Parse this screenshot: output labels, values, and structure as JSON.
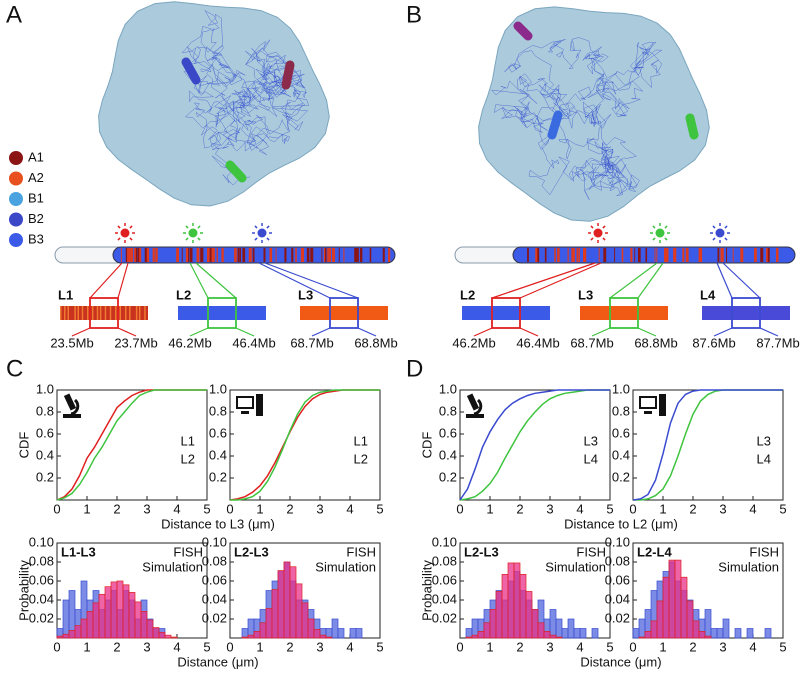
{
  "panel_labels": [
    "A",
    "B",
    "C",
    "D"
  ],
  "compartments": [
    {
      "label": "A1",
      "color": "#8b1414"
    },
    {
      "label": "A2",
      "color": "#e8501e"
    },
    {
      "label": "B1",
      "color": "#4aa3e0"
    },
    {
      "label": "B2",
      "color": "#3a48c8"
    },
    {
      "label": "B3",
      "color": "#3c5ae8"
    }
  ],
  "structures": [
    {
      "loci": [
        {
          "label": "L1",
          "color": "#e02020",
          "fill": "#c8321e",
          "start": "23.5Mb",
          "end": "23.7Mb"
        },
        {
          "label": "L2",
          "color": "#3ec43e",
          "fill": "#3c5ae8",
          "start": "46.2Mb",
          "end": "46.4Mb"
        },
        {
          "label": "L3",
          "color": "#3a4bd0",
          "fill": "#f05a14",
          "start": "68.7Mb",
          "end": "68.8Mb"
        }
      ]
    },
    {
      "loci": [
        {
          "label": "L2",
          "color": "#e02020",
          "fill": "#3c5ae8",
          "start": "46.2Mb",
          "end": "46.4Mb"
        },
        {
          "label": "L3",
          "color": "#3ec43e",
          "fill": "#f05a14",
          "start": "68.7Mb",
          "end": "68.8Mb"
        },
        {
          "label": "L4",
          "color": "#3a4bd0",
          "fill": "#4a4ad8",
          "start": "87.6Mb",
          "end": "87.7Mb"
        }
      ]
    }
  ],
  "chart_data": [
    {
      "type": "line",
      "icon": "microscope",
      "y_label": "CDF",
      "x_label": "Distance to L3 (μm)",
      "x": [
        0,
        0.25,
        0.5,
        0.75,
        1,
        1.25,
        1.5,
        1.75,
        2,
        2.25,
        2.5,
        2.75,
        3,
        3.25,
        3.5,
        3.75,
        4,
        4.25,
        4.5,
        4.75,
        5
      ],
      "xlim": [
        0,
        5
      ],
      "xticks": [
        0,
        1,
        2,
        3,
        4,
        5
      ],
      "ylim": [
        0,
        1
      ],
      "yticks": [
        0.2,
        0.4,
        0.6,
        0.8,
        {
          "value": 1,
          "label": "1.0"
        }
      ],
      "series": [
        {
          "name": "L1",
          "color": "#e02020",
          "values": [
            0,
            0.03,
            0.1,
            0.22,
            0.38,
            0.48,
            0.6,
            0.72,
            0.84,
            0.9,
            0.95,
            0.98,
            1,
            1,
            1,
            1,
            1,
            1,
            1,
            1,
            1
          ]
        },
        {
          "name": "L2",
          "color": "#3ec43e",
          "values": [
            0,
            0.02,
            0.06,
            0.14,
            0.25,
            0.38,
            0.48,
            0.6,
            0.72,
            0.8,
            0.88,
            0.95,
            0.98,
            1,
            1,
            1,
            1,
            1,
            1,
            1,
            1
          ]
        }
      ]
    },
    {
      "type": "line",
      "icon": "computer",
      "x": [
        0,
        0.25,
        0.5,
        0.75,
        1,
        1.25,
        1.5,
        1.75,
        2,
        2.25,
        2.5,
        2.75,
        3,
        3.25,
        3.5,
        3.75,
        4,
        4.25,
        4.5,
        4.75,
        5
      ],
      "xlim": [
        0,
        5
      ],
      "xticks": [
        0,
        1,
        2,
        3,
        4,
        5
      ],
      "ylim": [
        0,
        1
      ],
      "yticks": [
        0.2,
        0.4,
        0.6,
        0.8,
        {
          "value": 1,
          "label": "1.0"
        }
      ],
      "series": [
        {
          "name": "L1",
          "color": "#e02020",
          "values": [
            0,
            0.01,
            0.03,
            0.07,
            0.13,
            0.22,
            0.34,
            0.48,
            0.62,
            0.75,
            0.85,
            0.92,
            0.96,
            0.98,
            0.99,
            1,
            1,
            1,
            1,
            1,
            1
          ]
        },
        {
          "name": "L2",
          "color": "#3ec43e",
          "values": [
            0,
            0,
            0.01,
            0.03,
            0.08,
            0.17,
            0.3,
            0.46,
            0.63,
            0.78,
            0.89,
            0.95,
            0.98,
            0.99,
            1,
            1,
            1,
            1,
            1,
            1,
            1
          ]
        }
      ]
    },
    {
      "type": "line",
      "icon": "microscope",
      "y_label": "CDF",
      "x_label": "Distance to L2 (μm)",
      "x": [
        0,
        0.25,
        0.5,
        0.75,
        1,
        1.25,
        1.5,
        1.75,
        2,
        2.25,
        2.5,
        2.75,
        3,
        3.25,
        3.5,
        3.75,
        4,
        4.25,
        4.5,
        4.75,
        5
      ],
      "xlim": [
        0,
        5
      ],
      "xticks": [
        0,
        1,
        2,
        3,
        4,
        5
      ],
      "ylim": [
        0,
        1
      ],
      "yticks": [
        0.2,
        0.4,
        0.6,
        0.8,
        {
          "value": 1,
          "label": "1.0"
        }
      ],
      "series": [
        {
          "name": "L3",
          "color": "#3ec43e",
          "values": [
            0,
            0.01,
            0.03,
            0.08,
            0.15,
            0.25,
            0.38,
            0.5,
            0.62,
            0.72,
            0.8,
            0.87,
            0.92,
            0.95,
            0.97,
            0.98,
            0.99,
            1,
            1,
            1,
            1
          ]
        },
        {
          "name": "L4",
          "color": "#3a4bd0",
          "values": [
            0,
            0.1,
            0.28,
            0.48,
            0.62,
            0.73,
            0.82,
            0.88,
            0.92,
            0.95,
            0.97,
            0.98,
            0.99,
            1,
            1,
            1,
            1,
            1,
            1,
            1,
            1
          ]
        }
      ]
    },
    {
      "type": "line",
      "icon": "computer",
      "x": [
        0,
        0.25,
        0.5,
        0.75,
        1,
        1.25,
        1.5,
        1.75,
        2,
        2.25,
        2.5,
        2.75,
        3,
        3.25,
        3.5,
        3.75,
        4,
        4.25,
        4.5,
        4.75,
        5
      ],
      "xlim": [
        0,
        5
      ],
      "xticks": [
        0,
        1,
        2,
        3,
        4,
        5
      ],
      "ylim": [
        0,
        1
      ],
      "yticks": [
        0.2,
        0.4,
        0.6,
        0.8,
        {
          "value": 1,
          "label": "1.0"
        }
      ],
      "series": [
        {
          "name": "L3",
          "color": "#3ec43e",
          "values": [
            0,
            0,
            0.01,
            0.04,
            0.1,
            0.22,
            0.4,
            0.6,
            0.78,
            0.9,
            0.96,
            0.99,
            1,
            1,
            1,
            1,
            1,
            1,
            1,
            1,
            1
          ]
        },
        {
          "name": "L4",
          "color": "#3a4bd0",
          "values": [
            0,
            0.01,
            0.05,
            0.18,
            0.42,
            0.7,
            0.88,
            0.96,
            0.99,
            1,
            1,
            1,
            1,
            1,
            1,
            1,
            1,
            1,
            1,
            1,
            1
          ]
        }
      ]
    },
    {
      "type": "histogram",
      "title": "L1-L3",
      "y_label": "Probability",
      "x_label": "Distance (μm)",
      "bins": [
        0,
        0.2,
        0.4,
        0.6,
        0.8,
        1,
        1.2,
        1.4,
        1.6,
        1.8,
        2,
        2.2,
        2.4,
        2.6,
        2.8,
        3,
        3.2,
        3.4,
        3.6,
        3.8,
        4,
        4.2,
        4.4,
        4.6,
        4.8,
        5
      ],
      "xlim": [
        0,
        5
      ],
      "xticks": [
        0,
        1,
        2,
        3,
        4,
        5
      ],
      "ylim": [
        0,
        0.1
      ],
      "yticks": [
        0.02,
        0.04,
        0.06,
        0.08,
        {
          "value": 0.1,
          "label": "0.10"
        }
      ],
      "series": [
        {
          "name": "FISH",
          "color": "#5b6fe0",
          "values": [
            0.01,
            0.04,
            0.05,
            0.03,
            0.06,
            0.04,
            0.05,
            0.03,
            0.04,
            0.05,
            0.03,
            0.05,
            0.04,
            0.02,
            0.04,
            0.02,
            0.01,
            0.01,
            0,
            0,
            0,
            0,
            0,
            0,
            0
          ]
        },
        {
          "name": "Simulation",
          "color": "#e8308a",
          "values": [
            0.002,
            0.004,
            0.008,
            0.013,
            0.02,
            0.028,
            0.037,
            0.046,
            0.054,
            0.059,
            0.06,
            0.056,
            0.048,
            0.038,
            0.028,
            0.019,
            0.011,
            0.006,
            0.003,
            0.001,
            0,
            0,
            0,
            0,
            0
          ]
        }
      ]
    },
    {
      "type": "histogram",
      "title": "L2-L3",
      "bins": [
        0,
        0.2,
        0.4,
        0.6,
        0.8,
        1,
        1.2,
        1.4,
        1.6,
        1.8,
        2,
        2.2,
        2.4,
        2.6,
        2.8,
        3,
        3.2,
        3.4,
        3.6,
        3.8,
        4,
        4.2,
        4.4,
        4.6,
        4.8,
        5
      ],
      "xlim": [
        0,
        5
      ],
      "xticks": [
        0,
        1,
        2,
        3,
        4,
        5
      ],
      "ylim": [
        0,
        0.1
      ],
      "yticks": [
        0.02,
        0.04,
        0.06,
        0.08,
        {
          "value": 0.1,
          "label": "0.10"
        }
      ],
      "series": [
        {
          "name": "FISH",
          "color": "#5b6fe0",
          "values": [
            0,
            0,
            0.01,
            0.02,
            0.02,
            0.03,
            0.05,
            0.06,
            0.07,
            0.08,
            0.06,
            0.04,
            0.04,
            0.03,
            0.02,
            0.01,
            0.01,
            0.02,
            0.01,
            0,
            0.01,
            0.01,
            0,
            0,
            0
          ]
        },
        {
          "name": "Simulation",
          "color": "#e8308a",
          "values": [
            0,
            0,
            0.001,
            0.003,
            0.007,
            0.016,
            0.031,
            0.051,
            0.071,
            0.08,
            0.075,
            0.057,
            0.037,
            0.02,
            0.009,
            0.003,
            0.001,
            0,
            0,
            0,
            0,
            0,
            0,
            0,
            0
          ]
        }
      ]
    },
    {
      "type": "histogram",
      "title": "L2-L3",
      "y_label": "Probability",
      "x_label": "Distance (μm)",
      "bins": [
        0,
        0.2,
        0.4,
        0.6,
        0.8,
        1,
        1.2,
        1.4,
        1.6,
        1.8,
        2,
        2.2,
        2.4,
        2.6,
        2.8,
        3,
        3.2,
        3.4,
        3.6,
        3.8,
        4,
        4.2,
        4.4,
        4.6,
        4.8,
        5
      ],
      "xlim": [
        0,
        5
      ],
      "xticks": [
        0,
        1,
        2,
        3,
        4,
        5
      ],
      "ylim": [
        0,
        0.1
      ],
      "yticks": [
        0.02,
        0.04,
        0.06,
        0.08,
        {
          "value": 0.1,
          "label": "0.10"
        }
      ],
      "series": [
        {
          "name": "FISH",
          "color": "#5b6fe0",
          "values": [
            0,
            0.01,
            0.02,
            0.02,
            0.03,
            0.04,
            0.05,
            0.04,
            0.06,
            0.07,
            0.05,
            0.04,
            0.03,
            0.04,
            0.02,
            0.03,
            0.02,
            0.01,
            0.02,
            0.01,
            0.01,
            0,
            0.01,
            0,
            0
          ]
        },
        {
          "name": "Simulation",
          "color": "#e8308a",
          "values": [
            0,
            0.001,
            0.003,
            0.007,
            0.016,
            0.03,
            0.049,
            0.067,
            0.079,
            0.079,
            0.067,
            0.049,
            0.03,
            0.016,
            0.007,
            0.003,
            0.001,
            0,
            0,
            0,
            0,
            0,
            0,
            0,
            0
          ]
        }
      ]
    },
    {
      "type": "histogram",
      "title": "L2-L4",
      "bins": [
        0,
        0.2,
        0.4,
        0.6,
        0.8,
        1,
        1.2,
        1.4,
        1.6,
        1.8,
        2,
        2.2,
        2.4,
        2.6,
        2.8,
        3,
        3.2,
        3.4,
        3.6,
        3.8,
        4,
        4.2,
        4.4,
        4.6,
        4.8,
        5
      ],
      "xlim": [
        0,
        5
      ],
      "xticks": [
        0,
        1,
        2,
        3,
        4,
        5
      ],
      "ylim": [
        0,
        0.1
      ],
      "yticks": [
        0.02,
        0.04,
        0.06,
        0.08,
        {
          "value": 0.1,
          "label": "0.10"
        }
      ],
      "series": [
        {
          "name": "FISH",
          "color": "#5b6fe0",
          "values": [
            0.01,
            0.02,
            0.03,
            0.05,
            0.06,
            0.07,
            0.08,
            0.06,
            0.05,
            0.04,
            0.03,
            0.02,
            0.03,
            0.01,
            0.01,
            0.02,
            0,
            0.01,
            0,
            0.01,
            0,
            0,
            0.01,
            0,
            0
          ]
        },
        {
          "name": "Simulation",
          "color": "#e8308a",
          "values": [
            0,
            0.001,
            0.007,
            0.018,
            0.039,
            0.064,
            0.082,
            0.082,
            0.064,
            0.039,
            0.018,
            0.007,
            0.002,
            0,
            0,
            0,
            0,
            0,
            0,
            0,
            0,
            0,
            0,
            0,
            0
          ]
        }
      ]
    }
  ]
}
